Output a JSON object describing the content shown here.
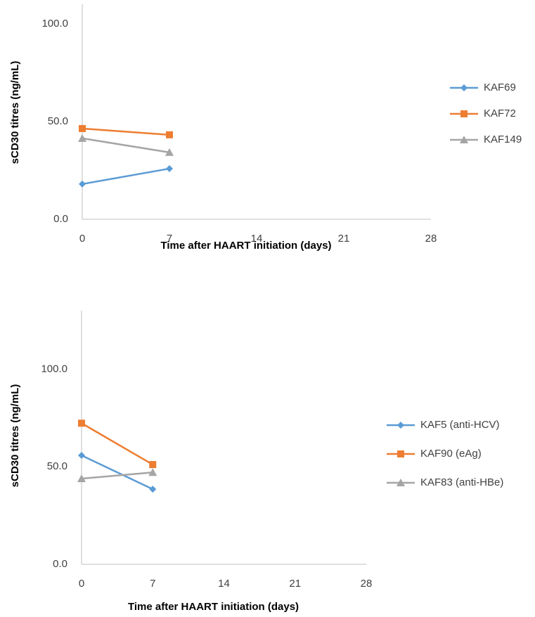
{
  "chart_data": [
    {
      "type": "line",
      "x_label": "Time after HAART initiation  (days)",
      "y_label": "sCD30 titres (ng/mL)",
      "x": [
        0,
        7
      ],
      "xlim": [
        0,
        28
      ],
      "xticks": [
        0,
        7,
        14,
        21,
        28
      ],
      "ylim": [
        0,
        110
      ],
      "yticks": [
        {
          "value": 0,
          "label": "0.0"
        },
        {
          "value": 50,
          "label": "50.0"
        },
        {
          "value": 100,
          "label": "100.0"
        }
      ],
      "legend": "right",
      "series": [
        {
          "name": "KAF69",
          "color": "#5b9bd5",
          "marker": "diamond",
          "values": [
            18.0,
            25.9
          ]
        },
        {
          "name": "KAF72",
          "color": "#ed7d31",
          "marker": "square",
          "values": [
            46.4,
            43.2
          ]
        },
        {
          "name": "KAF149",
          "color": "#a5a5a5",
          "marker": "triangle",
          "values": [
            41.4,
            34.2
          ]
        }
      ]
    },
    {
      "type": "line",
      "x_label": "Time after HAART initiation  (days)",
      "y_label": "sCD30 titres (ng/mL)",
      "x": [
        0,
        7
      ],
      "xlim": [
        0,
        28
      ],
      "xticks": [
        0,
        7,
        14,
        21,
        28
      ],
      "ylim": [
        0,
        130
      ],
      "yticks": [
        {
          "value": 0,
          "label": "0.0"
        },
        {
          "value": 50,
          "label": "50.0"
        },
        {
          "value": 100,
          "label": "100.0"
        }
      ],
      "legend": "right",
      "series": [
        {
          "name": "KAF5 (anti-HCV)",
          "color": "#5b9bd5",
          "marker": "diamond",
          "values": [
            55.8,
            38.5
          ]
        },
        {
          "name": "KAF90 (eAg)",
          "color": "#ed7d31",
          "marker": "square",
          "values": [
            72.3,
            51.1
          ]
        },
        {
          "name": "KAF83 (anti-HBe)",
          "color": "#a5a5a5",
          "marker": "triangle",
          "values": [
            43.9,
            47.1
          ]
        }
      ]
    }
  ]
}
